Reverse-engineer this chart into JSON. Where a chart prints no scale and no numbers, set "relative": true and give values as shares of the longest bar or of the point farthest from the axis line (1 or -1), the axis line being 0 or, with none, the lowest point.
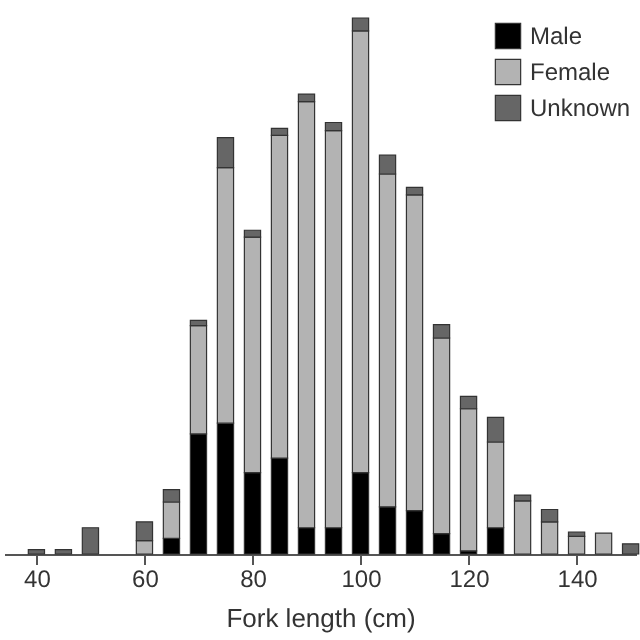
{
  "chart_data": {
    "type": "bar",
    "stacked": true,
    "relative": true,
    "xlabel": "Fork length (cm)",
    "x": [
      40,
      45,
      50,
      60,
      65,
      70,
      75,
      80,
      85,
      90,
      95,
      100,
      105,
      110,
      115,
      120,
      125,
      130,
      135,
      140,
      145,
      150
    ],
    "xlim": [
      34,
      151
    ],
    "xticks": [
      40,
      60,
      80,
      100,
      120,
      140
    ],
    "legend": "top right",
    "grid": false,
    "series": [
      {
        "name": "Male",
        "color": "#000000",
        "values": [
          null,
          null,
          null,
          null,
          0.029,
          0.224,
          0.244,
          0.152,
          0.179,
          0.049,
          0.049,
          0.152,
          0.088,
          0.081,
          0.038,
          0.006,
          0.049,
          null,
          null,
          null,
          null,
          null
        ]
      },
      {
        "name": "Female",
        "color": "#b3b3b3",
        "values": [
          null,
          null,
          null,
          0.025,
          0.068,
          0.202,
          0.477,
          0.439,
          0.602,
          0.795,
          0.741,
          0.824,
          0.621,
          0.589,
          0.365,
          0.265,
          0.16,
          0.099,
          0.06,
          0.033,
          0.039,
          null
        ]
      },
      {
        "name": "Unknown",
        "color": "#666666",
        "values": [
          0.008,
          0.008,
          0.049,
          0.035,
          0.023,
          0.01,
          0.056,
          0.013,
          0.013,
          0.014,
          0.015,
          0.024,
          0.035,
          0.014,
          0.025,
          0.023,
          0.046,
          0.011,
          0.023,
          0.008,
          null,
          0.019
        ]
      }
    ]
  }
}
